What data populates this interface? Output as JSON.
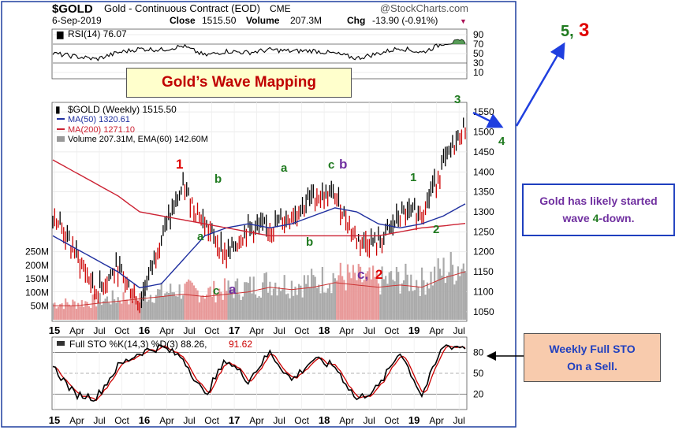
{
  "header": {
    "symbol": "$GOLD",
    "name": "Gold - Continuous Contract (EOD)",
    "exchange": "CME",
    "watermark": "@StockCharts.com",
    "date": "6-Sep-2019",
    "close_label": "Close",
    "close": "1515.50",
    "volume_label": "Volume",
    "volume": "207.3M",
    "chg_label": "Chg",
    "chg": "-13.90 (-0.91%)",
    "chg_marker": "▼"
  },
  "rsi": {
    "label": "RSI(14) 76.07",
    "ticks": [
      "90",
      "70",
      "50",
      "30",
      "10"
    ]
  },
  "price": {
    "label": "$GOLD (Weekly) 1515.50",
    "ma50_label": "MA(50) 1320.61",
    "ma200_label": "MA(200) 1271.10",
    "volume_label": "Volume 207.31M, EMA(60) 142.60M",
    "ticks": [
      "1550",
      "1500",
      "1450",
      "1400",
      "1350",
      "1300",
      "1250",
      "1200",
      "1150",
      "1100",
      "1050"
    ],
    "vol_ticks": [
      "250M",
      "200M",
      "150M",
      "100M",
      "50M"
    ]
  },
  "sto": {
    "label_main": "Full STO %K(14,3) %D(3) 88.26,",
    "label_d": "91.62",
    "ticks": [
      "80",
      "50",
      "20"
    ]
  },
  "x_axis": [
    "15",
    "Apr",
    "Jul",
    "Oct",
    "16",
    "Apr",
    "Jul",
    "Oct",
    "17",
    "Apr",
    "Jul",
    "Oct",
    "18",
    "Apr",
    "Jul",
    "Oct",
    "19",
    "Apr",
    "Jul"
  ],
  "annotations": {
    "title_box": "Gold’s Wave Mapping",
    "note_line1": "Gold has likely started",
    "note_pre": "wave ",
    "note_wave": "4",
    "note_post": "-down.",
    "sto_line1": "Weekly Full STO",
    "sto_line2": "On a Sell.",
    "waves": {
      "w1_2016": "1",
      "wa_2016": "a",
      "wb_2016": "b",
      "wc_2016": "c",
      "wa2_2016": "a",
      "wa_2017": "a",
      "wb_2017": "b",
      "wc_2018": "c",
      "wb_2018": "b",
      "wc_2018b": "c,",
      "w2_2018": "2",
      "w1_2019": "1",
      "w2_2019": "2",
      "w3_2019": "3",
      "w4_2019": "4",
      "w5_label": "5,",
      "w3_label": "3"
    }
  },
  "colors": {
    "price_bar": "#000000",
    "price_bar_down": "#cc0000",
    "ma50": "#1f2f9f",
    "ma200": "#cc2233",
    "volume": "#aaaaaa",
    "volume_down": "#e89999",
    "rsi_line": "#000000",
    "rsi_fill": "#3a8a3a",
    "sto_k": "#000000",
    "sto_d": "#cc0000",
    "wave_red": "#e00000",
    "wave_green": "#1f7a1f",
    "wave_purple": "#7030a0",
    "arrow_blue": "#1f3fdf",
    "frame": "#1f3f9f"
  },
  "chart_data": {
    "type": "line",
    "x": [
      "2015-01",
      "2015-04",
      "2015-07",
      "2015-10",
      "2016-01",
      "2016-04",
      "2016-07",
      "2016-10",
      "2017-01",
      "2017-04",
      "2017-07",
      "2017-10",
      "2018-01",
      "2018-04",
      "2018-07",
      "2018-10",
      "2019-01",
      "2019-04",
      "2019-07",
      "2019-09"
    ],
    "series": [
      {
        "name": "$GOLD (Weekly)",
        "values": [
          1300,
          1200,
          1100,
          1160,
          1070,
          1240,
          1360,
          1270,
          1190,
          1260,
          1260,
          1290,
          1340,
          1340,
          1230,
          1220,
          1290,
          1300,
          1420,
          1515
        ]
      },
      {
        "name": "MA(50)",
        "values": [
          1240,
          1210,
          1180,
          1150,
          1110,
          1120,
          1180,
          1240,
          1260,
          1270,
          1260,
          1270,
          1290,
          1310,
          1300,
          1270,
          1260,
          1270,
          1290,
          1320
        ]
      },
      {
        "name": "MA(200)",
        "values": [
          1430,
          1400,
          1370,
          1340,
          1300,
          1290,
          1280,
          1270,
          1260,
          1250,
          1240,
          1240,
          1240,
          1240,
          1240,
          1240,
          1250,
          1260,
          1265,
          1271
        ]
      }
    ],
    "rsi": [
      50,
      44,
      38,
      52,
      60,
      58,
      66,
      46,
      55,
      52,
      58,
      55,
      56,
      50,
      40,
      50,
      62,
      52,
      72,
      76
    ],
    "sto_k": [
      60,
      20,
      15,
      60,
      80,
      88,
      72,
      18,
      70,
      40,
      80,
      40,
      70,
      60,
      12,
      30,
      82,
      18,
      90,
      88
    ],
    "sto_d": [
      58,
      24,
      18,
      55,
      78,
      85,
      75,
      22,
      65,
      44,
      76,
      44,
      68,
      62,
      15,
      28,
      80,
      22,
      88,
      92
    ],
    "volume_m": [
      60,
      60,
      70,
      80,
      90,
      100,
      110,
      100,
      110,
      120,
      140,
      130,
      140,
      160,
      150,
      140,
      150,
      140,
      180,
      207
    ],
    "ylim": [
      1030,
      1570
    ],
    "rsi_ylim": [
      0,
      100
    ],
    "sto_ylim": [
      0,
      100
    ],
    "grid": true
  }
}
